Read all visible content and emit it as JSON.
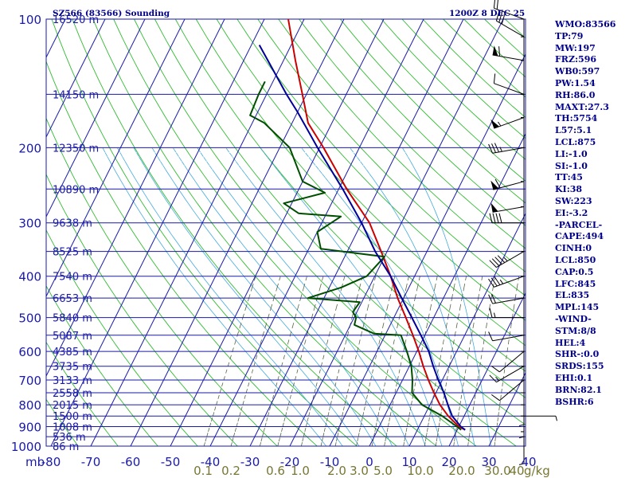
{
  "header": {
    "title": "SZ566 (83566) Sounding",
    "datetime": "1200Z  8 DEC 25"
  },
  "sidebar": {
    "lines": [
      "WMO:83566",
      "TP:79",
      "MW:197",
      "FRZ:596",
      "WB0:597",
      "PW:1.54",
      "RH:86.0",
      "MAXT:27.3",
      "TH:5754",
      "L57:5.1",
      "LCL:875",
      "LI:-1.0",
      "SI:-1.0",
      "TT:45",
      "KI:38",
      "SW:223",
      "EI:-3.2",
      "-PARCEL-",
      "CAPE:494",
      "CINH:0",
      "LCL:850",
      "CAP:0.5",
      "LFC:845",
      "EL:835",
      "MPL:145",
      "-WIND-",
      "STM:8/8",
      "HEL:4",
      "SHR-:0.0",
      "SRDS:155",
      "EHI:0.1",
      "BRN:82.1",
      "BSHR:6"
    ]
  },
  "chart_data": {
    "type": "line",
    "chart_kind": "Skew-T log-P sounding diagram",
    "y_axis": {
      "unit_label": "mb",
      "scale": "log",
      "range": [
        1000,
        100
      ],
      "ticks": [
        "100",
        "200",
        "300",
        "400",
        "500",
        "600",
        "700",
        "800",
        "900",
        "1000"
      ]
    },
    "x_axis": {
      "range": [
        -80,
        40
      ],
      "ticks": [
        "-80",
        "-70",
        "-60",
        "-50",
        "-40",
        "-30",
        "-20",
        "-10",
        "0",
        "10",
        "20",
        "30",
        "40"
      ]
    },
    "mixing_ratio_labels": [
      "0.1",
      "0.2",
      "0.6",
      "1.0",
      "2.0",
      "3.0",
      "5.0",
      "10.0",
      "20.0",
      "30.0",
      "40"
    ],
    "mixing_ratio_unit": "g/kg",
    "height_labels": [
      {
        "p": 100,
        "text": "16520 m"
      },
      {
        "p": 150,
        "text": "14150 m"
      },
      {
        "p": 200,
        "text": "12350 m"
      },
      {
        "p": 250,
        "text": "10890 m"
      },
      {
        "p": 300,
        "text": "9638 m"
      },
      {
        "p": 350,
        "text": "8525 m"
      },
      {
        "p": 400,
        "text": "7540 m"
      },
      {
        "p": 450,
        "text": "6653 m"
      },
      {
        "p": 500,
        "text": "5840 m"
      },
      {
        "p": 550,
        "text": "5087 m"
      },
      {
        "p": 600,
        "text": "4385 m"
      },
      {
        "p": 650,
        "text": "3735 m"
      },
      {
        "p": 700,
        "text": "3133 m"
      },
      {
        "p": 750,
        "text": "2558 m"
      },
      {
        "p": 800,
        "text": "2015 m"
      },
      {
        "p": 850,
        "text": "1500 m"
      },
      {
        "p": 900,
        "text": "1008 m"
      },
      {
        "p": 950,
        "text": "536 m"
      },
      {
        "p": 1000,
        "text": "86 m"
      }
    ],
    "series": [
      {
        "key": "temperature",
        "color": "#cc0000",
        "points": [
          {
            "p": 916,
            "t": 22
          },
          {
            "p": 900,
            "t": 20
          },
          {
            "p": 850,
            "t": 16
          },
          {
            "p": 800,
            "t": 12.5
          },
          {
            "p": 750,
            "t": 9.5
          },
          {
            "p": 700,
            "t": 6.5
          },
          {
            "p": 650,
            "t": 3.5
          },
          {
            "p": 600,
            "t": 0.5
          },
          {
            "p": 550,
            "t": -3
          },
          {
            "p": 500,
            "t": -7
          },
          {
            "p": 450,
            "t": -11.5
          },
          {
            "p": 400,
            "t": -16
          },
          {
            "p": 350,
            "t": -21.5
          },
          {
            "p": 300,
            "t": -28
          },
          {
            "p": 250,
            "t": -38
          },
          {
            "p": 200,
            "t": -49
          },
          {
            "p": 175,
            "t": -56
          },
          {
            "p": 150,
            "t": -61
          },
          {
            "p": 125,
            "t": -67
          },
          {
            "p": 100,
            "t": -74
          }
        ]
      },
      {
        "key": "dewpoint",
        "color": "#004d00",
        "points": [
          {
            "p": 916,
            "t": 21
          },
          {
            "p": 900,
            "t": 19.5
          },
          {
            "p": 850,
            "t": 14.5
          },
          {
            "p": 800,
            "t": 8
          },
          {
            "p": 750,
            "t": 4
          },
          {
            "p": 700,
            "t": 2.5
          },
          {
            "p": 650,
            "t": 0.5
          },
          {
            "p": 600,
            "t": -2.5
          },
          {
            "p": 550,
            "t": -6
          },
          {
            "p": 545,
            "t": -13
          },
          {
            "p": 520,
            "t": -19
          },
          {
            "p": 500,
            "t": -19.5
          },
          {
            "p": 485,
            "t": -21
          },
          {
            "p": 460,
            "t": -20.5
          },
          {
            "p": 450,
            "t": -34
          },
          {
            "p": 425,
            "t": -27
          },
          {
            "p": 400,
            "t": -22
          },
          {
            "p": 360,
            "t": -20
          },
          {
            "p": 345,
            "t": -37
          },
          {
            "p": 315,
            "t": -40
          },
          {
            "p": 290,
            "t": -36
          },
          {
            "p": 285,
            "t": -47
          },
          {
            "p": 270,
            "t": -52
          },
          {
            "p": 255,
            "t": -43
          },
          {
            "p": 240,
            "t": -50
          },
          {
            "p": 200,
            "t": -57.5
          },
          {
            "p": 175,
            "t": -67
          },
          {
            "p": 168,
            "t": -71.5
          },
          {
            "p": 150,
            "t": -72
          },
          {
            "p": 140,
            "t": -72
          }
        ]
      },
      {
        "key": "parcel",
        "color": "#000099",
        "points": [
          {
            "p": 916,
            "t": 22
          },
          {
            "p": 900,
            "t": 20.5
          },
          {
            "p": 850,
            "t": 17
          },
          {
            "p": 800,
            "t": 14.5
          },
          {
            "p": 750,
            "t": 12
          },
          {
            "p": 700,
            "t": 9
          },
          {
            "p": 650,
            "t": 6
          },
          {
            "p": 600,
            "t": 3
          },
          {
            "p": 550,
            "t": -1
          },
          {
            "p": 500,
            "t": -5.5
          },
          {
            "p": 450,
            "t": -10.5
          },
          {
            "p": 400,
            "t": -16
          },
          {
            "p": 350,
            "t": -23
          },
          {
            "p": 300,
            "t": -30
          },
          {
            "p": 250,
            "t": -39
          },
          {
            "p": 200,
            "t": -50.5
          },
          {
            "p": 165,
            "t": -60
          },
          {
            "p": 150,
            "t": -65
          },
          {
            "p": 130,
            "t": -72
          },
          {
            "p": 115,
            "t": -78
          }
        ]
      }
    ],
    "wind_barbs": [
      {
        "p": 100,
        "dir": 290,
        "spd": 20
      },
      {
        "p": 110,
        "dir": 300,
        "spd": 30
      },
      {
        "p": 125,
        "dir": 280,
        "spd": 60
      },
      {
        "p": 150,
        "dir": 290,
        "spd": 10
      },
      {
        "p": 170,
        "dir": 250,
        "spd": 55
      },
      {
        "p": 200,
        "dir": 260,
        "spd": 35
      },
      {
        "p": 240,
        "dir": 255,
        "spd": 60
      },
      {
        "p": 275,
        "dir": 260,
        "spd": 50
      },
      {
        "p": 300,
        "dir": 270,
        "spd": 40
      },
      {
        "p": 350,
        "dir": 240,
        "spd": 45
      },
      {
        "p": 400,
        "dir": 250,
        "spd": 35
      },
      {
        "p": 450,
        "dir": 260,
        "spd": 20
      },
      {
        "p": 500,
        "dir": 270,
        "spd": 15
      },
      {
        "p": 550,
        "dir": 260,
        "spd": 10
      },
      {
        "p": 600,
        "dir": 230,
        "spd": 10
      },
      {
        "p": 650,
        "dir": 240,
        "spd": 15
      },
      {
        "p": 700,
        "dir": 230,
        "spd": 10
      },
      {
        "p": 750,
        "dir": 180,
        "spd": 5
      },
      {
        "p": 800,
        "dir": 180,
        "spd": 5
      },
      {
        "p": 850,
        "dir": 90,
        "spd": 5
      },
      {
        "p": 925,
        "dir": 180,
        "spd": 5
      }
    ]
  }
}
